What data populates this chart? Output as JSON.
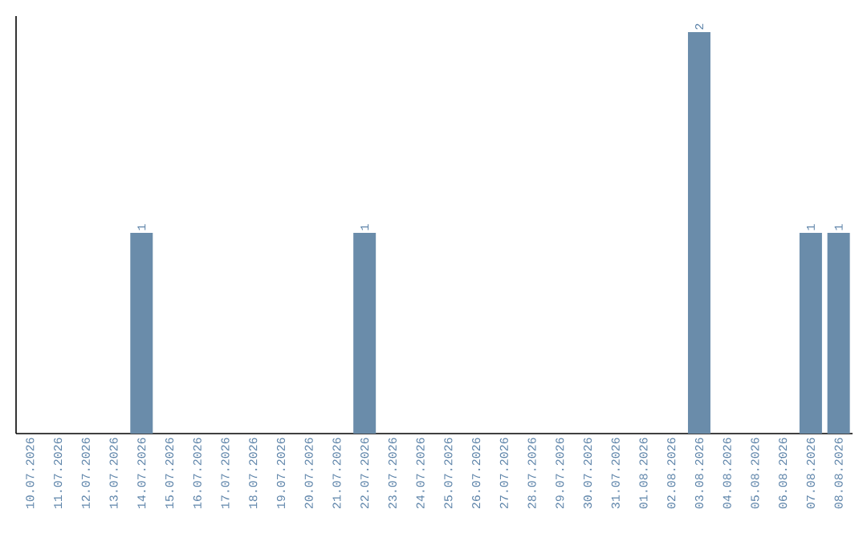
{
  "chart_data": {
    "type": "bar",
    "categories": [
      "10.07.2026",
      "11.07.2026",
      "12.07.2026",
      "13.07.2026",
      "14.07.2026",
      "15.07.2026",
      "16.07.2026",
      "17.07.2026",
      "18.07.2026",
      "19.07.2026",
      "20.07.2026",
      "21.07.2026",
      "22.07.2026",
      "23.07.2026",
      "24.07.2026",
      "25.07.2026",
      "26.07.2026",
      "27.07.2026",
      "28.07.2026",
      "29.07.2026",
      "30.07.2026",
      "31.07.2026",
      "01.08.2026",
      "02.08.2026",
      "03.08.2026",
      "04.08.2026",
      "05.08.2026",
      "06.08.2026",
      "07.08.2026",
      "08.08.2026"
    ],
    "values": [
      0,
      0,
      0,
      0,
      1,
      0,
      0,
      0,
      0,
      0,
      0,
      0,
      1,
      0,
      0,
      0,
      0,
      0,
      0,
      0,
      0,
      0,
      0,
      0,
      2,
      0,
      0,
      0,
      1,
      1
    ],
    "value_labels": [
      null,
      null,
      null,
      null,
      "1",
      null,
      null,
      null,
      null,
      null,
      null,
      null,
      "1",
      null,
      null,
      null,
      null,
      null,
      null,
      null,
      null,
      null,
      null,
      null,
      "2",
      null,
      null,
      null,
      "1",
      "1"
    ],
    "color": "#6a8caa"
  }
}
